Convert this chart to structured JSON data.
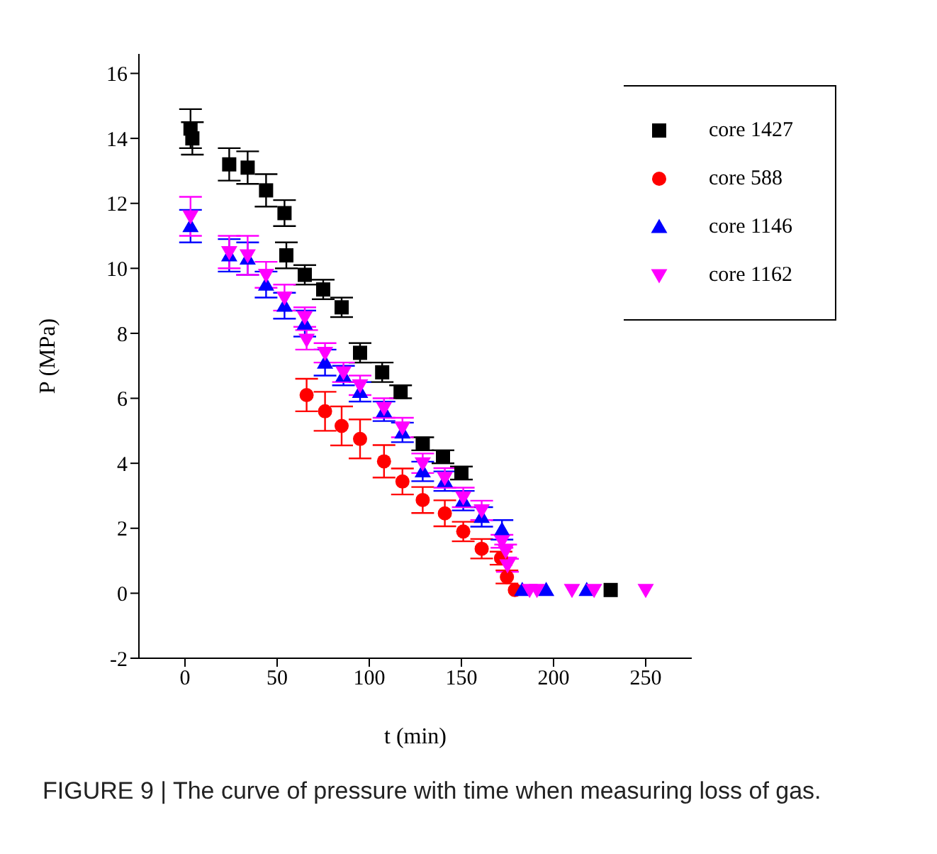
{
  "chart_data": {
    "type": "scatter",
    "title": "FIGURE 9 | The curve of pressure with time when measuring loss of gas.",
    "xlabel": "t (min)",
    "ylabel": "P (MPa)",
    "xlim": [
      -25,
      275
    ],
    "ylim": [
      -2,
      16.6
    ],
    "xticks": [
      0,
      50,
      100,
      150,
      200,
      250
    ],
    "yticks": [
      -2,
      0,
      2,
      4,
      6,
      8,
      10,
      12,
      14,
      16
    ],
    "legend": "top right",
    "series": [
      {
        "name": "core 1427",
        "color": "#000000",
        "marker": "square",
        "x": [
          3,
          4,
          24,
          34,
          44,
          54,
          55,
          65,
          75,
          85,
          95,
          107,
          117,
          129,
          140,
          150,
          231
        ],
        "values": [
          14.3,
          14.0,
          13.2,
          13.1,
          12.4,
          11.7,
          10.4,
          9.8,
          9.35,
          8.8,
          7.4,
          6.8,
          6.2,
          4.6,
          4.2,
          3.7,
          0.1
        ],
        "errors": [
          0.6,
          0.5,
          0.5,
          0.5,
          0.5,
          0.4,
          0.4,
          0.3,
          0.3,
          0.3,
          0.3,
          0.3,
          0.2,
          0.2,
          0.2,
          0.2,
          null
        ]
      },
      {
        "name": "core 588",
        "color": "#ff0000",
        "marker": "circle",
        "x": [
          66,
          76,
          85,
          95,
          108,
          118,
          129,
          141,
          151,
          161,
          171.5,
          173,
          174.7,
          176,
          179
        ],
        "values": [
          6.1,
          5.6,
          5.15,
          4.75,
          4.06,
          3.44,
          2.87,
          2.46,
          1.9,
          1.37,
          1.08,
          null,
          0.5,
          null,
          0.1
        ],
        "errors": [
          0.5,
          0.6,
          0.6,
          0.6,
          0.5,
          0.4,
          0.4,
          0.4,
          0.3,
          0.3,
          0.2,
          null,
          0.2,
          null,
          null
        ]
      },
      {
        "name": "core 1146",
        "color": "#0000ff",
        "marker": "triangle",
        "x": [
          3,
          24,
          34,
          44,
          54,
          65,
          76,
          86,
          95,
          108,
          118,
          129,
          141,
          151,
          161,
          172,
          183,
          196,
          218
        ],
        "values": [
          11.3,
          10.4,
          10.3,
          9.5,
          8.85,
          8.3,
          7.1,
          6.7,
          6.2,
          5.6,
          4.95,
          3.75,
          3.45,
          2.85,
          2.35,
          1.95,
          0.1,
          0.1,
          0.1
        ],
        "errors": [
          0.5,
          0.5,
          0.5,
          0.4,
          0.4,
          0.4,
          0.4,
          0.3,
          0.3,
          0.3,
          0.3,
          0.3,
          0.3,
          0.3,
          0.3,
          0.3,
          null,
          null,
          null
        ]
      },
      {
        "name": "core 1162",
        "color": "#ff00ff",
        "marker": "triangle-down",
        "x": [
          3,
          24,
          34,
          44,
          54,
          65,
          66,
          76,
          86,
          95,
          108,
          118,
          129,
          141,
          151,
          161,
          172,
          174,
          175,
          187,
          191,
          210,
          222,
          250
        ],
        "values": [
          11.6,
          10.5,
          10.4,
          9.8,
          9.1,
          8.5,
          7.8,
          7.4,
          6.8,
          6.4,
          5.7,
          5.1,
          4.0,
          3.55,
          2.95,
          2.55,
          1.6,
          1.3,
          0.86,
          0.1,
          0.1,
          0.1,
          0.1,
          0.1
        ],
        "errors": [
          0.6,
          0.5,
          0.6,
          0.4,
          0.4,
          0.3,
          0.3,
          0.3,
          0.3,
          0.3,
          0.3,
          0.3,
          0.3,
          0.3,
          0.3,
          0.3,
          0.2,
          0.2,
          0.2,
          null,
          null,
          null,
          null,
          null
        ]
      }
    ]
  }
}
